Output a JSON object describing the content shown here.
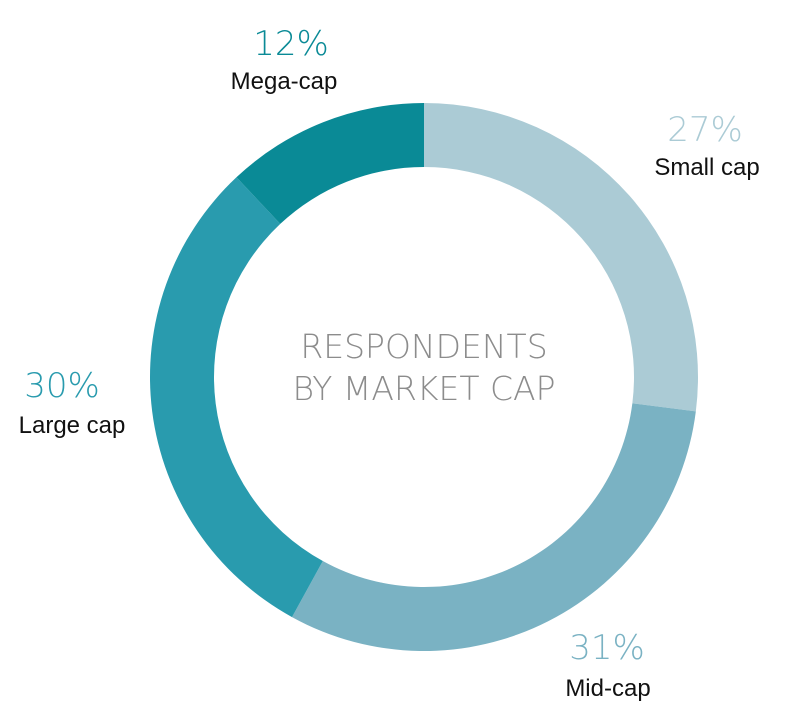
{
  "chart_data": {
    "type": "pie",
    "donut": true,
    "title": "RESPONDENTS BY MARKET CAP",
    "title_lines": [
      "RESPONDENTS",
      "BY MARKET CAP"
    ],
    "slices": [
      {
        "label": "Small cap",
        "value": 27,
        "value_label": "27%",
        "color": "#abcbd5"
      },
      {
        "label": "Mid-cap",
        "value": 31,
        "value_label": "31%",
        "color": "#7ab2c3"
      },
      {
        "label": "Large cap",
        "value": 30,
        "value_label": "30%",
        "color": "#299bae"
      },
      {
        "label": "Mega-cap",
        "value": 12,
        "value_label": "12%",
        "color": "#0a8a96"
      }
    ],
    "start": "12 o'clock",
    "direction": "clockwise"
  }
}
